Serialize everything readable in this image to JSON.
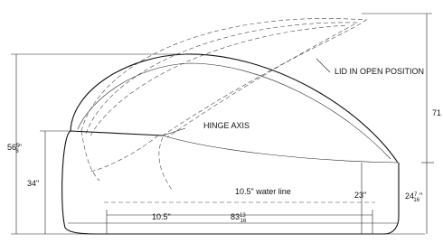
{
  "labels": {
    "lid_open": "LID IN OPEN POSITION",
    "hinge_axis": "HINGE AXIS",
    "water_line": "10.5\" water line"
  },
  "dimensions": {
    "overall_height": {
      "text": "71"
    },
    "closed_height": {
      "whole": "56",
      "num": "5",
      "den": "8",
      "unit": "\""
    },
    "base_height": {
      "text": "34\""
    },
    "side_depth": {
      "text": "23\""
    },
    "end_height": {
      "whole": "24",
      "num": "7",
      "den": "16",
      "unit": "\""
    },
    "water_depth": {
      "text": "10.5\""
    },
    "length": {
      "whole": "83",
      "num": "13",
      "den": "16"
    }
  }
}
